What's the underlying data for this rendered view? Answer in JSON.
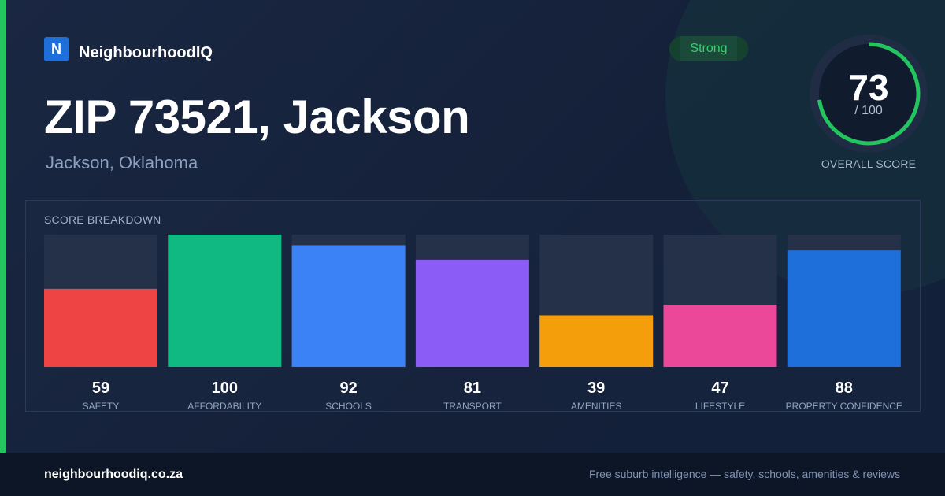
{
  "brand": {
    "logo_letter": "N",
    "name": "NeighbourhoodIQ"
  },
  "header": {
    "title": "ZIP 73521, Jackson",
    "subtitle": "Jackson, Oklahoma"
  },
  "badge": {
    "label": "Strong"
  },
  "overall": {
    "score": "73",
    "max_label": "/ 100",
    "label": "OVERALL SCORE",
    "value": 73,
    "max": 100,
    "color": "#22c55e"
  },
  "breakdown": {
    "title": "SCORE BREAKDOWN"
  },
  "chart_data": {
    "type": "bar",
    "categories": [
      "SAFETY",
      "AFFORDABILITY",
      "SCHOOLS",
      "TRANSPORT",
      "AMENITIES",
      "LIFESTYLE",
      "PROPERTY CONFIDENCE"
    ],
    "values": [
      59,
      100,
      92,
      81,
      39,
      47,
      88
    ],
    "colors": [
      "#ef4444",
      "#10b981",
      "#3b82f6",
      "#8b5cf6",
      "#f59e0b",
      "#ec4899",
      "#1e6fd9"
    ],
    "ylim": [
      0,
      100
    ],
    "track_color": "#243149"
  },
  "footer": {
    "domain": "neighbourhoodiq.co.za",
    "tagline": "Free suburb intelligence — safety, schools, amenities & reviews"
  }
}
